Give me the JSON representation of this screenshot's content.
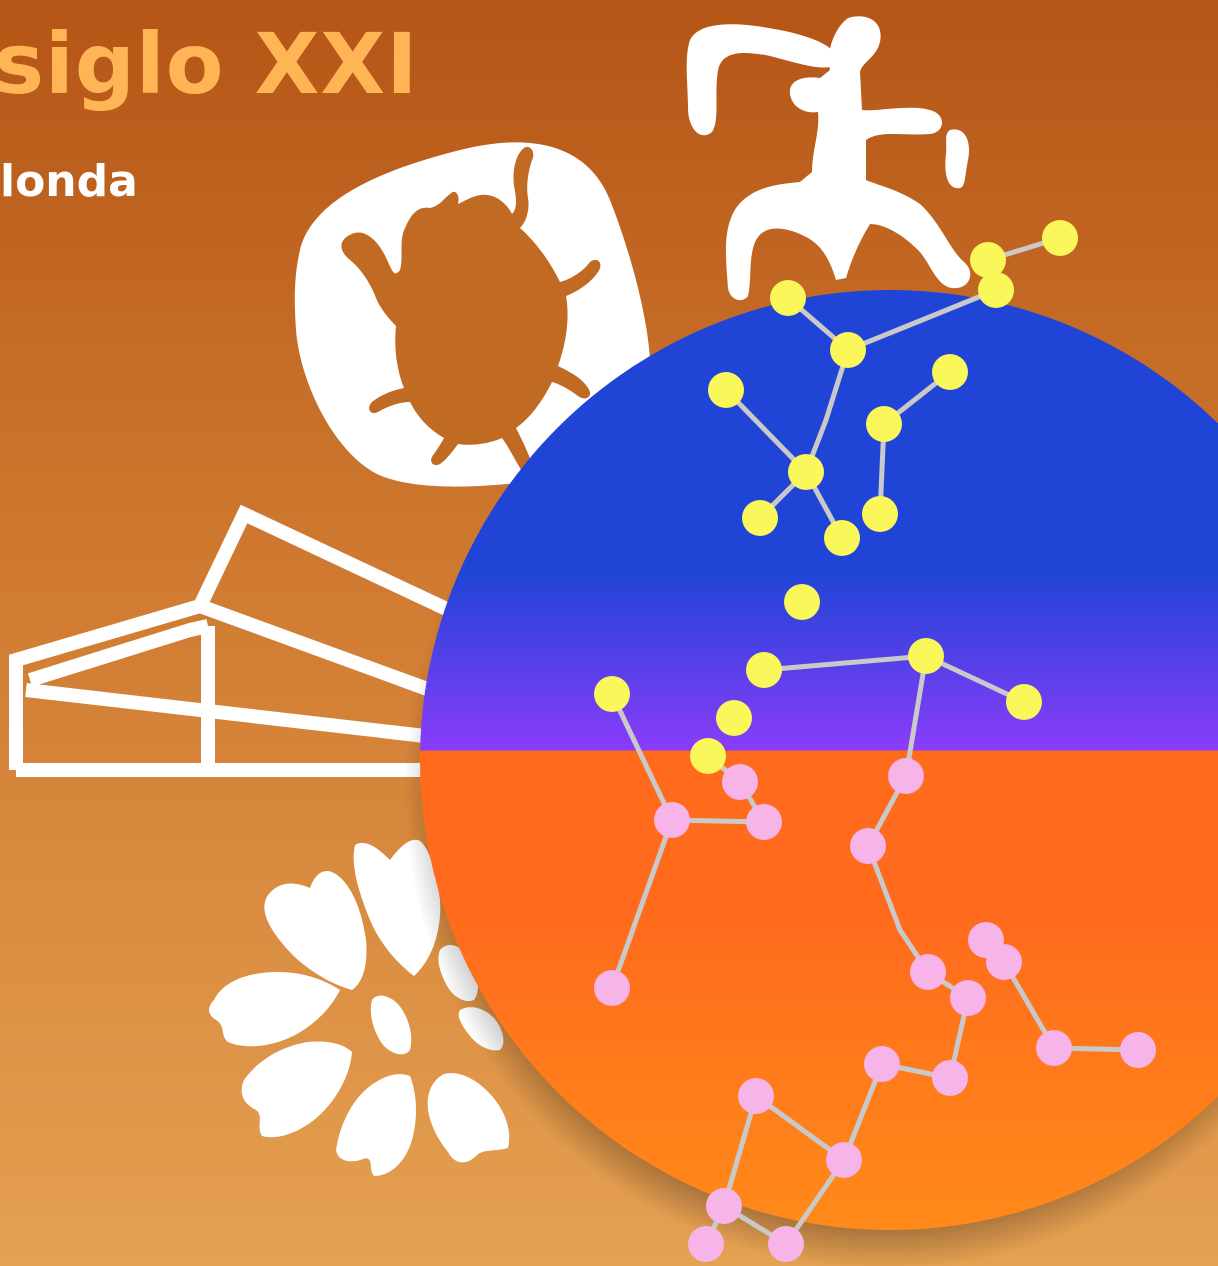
{
  "title": "siglo XXI",
  "subtitle": "londa",
  "colors": {
    "background_top": "#b55516",
    "background_bottom": "#e5a052",
    "title": "#ffb456",
    "subtitle": "#ffffff",
    "pictogram_fill": "#ffffff",
    "disc_top": "#1f44d6",
    "disc_middle": "#8a3cfa",
    "disc_lower": "#ff6a1c",
    "disc_bottom": "#ff8a1a",
    "star_yellow": "#f9f75a",
    "star_pink": "#f7b4e8",
    "constellation_line": "#c9c9c9"
  },
  "icons": {
    "petroglyph": "petroglyph-figure-icon",
    "beetle": "beetle-badge-icon",
    "building": "building-outline-icon",
    "flower": "flower-petals-icon",
    "disc": "constellation-disc-icon"
  }
}
